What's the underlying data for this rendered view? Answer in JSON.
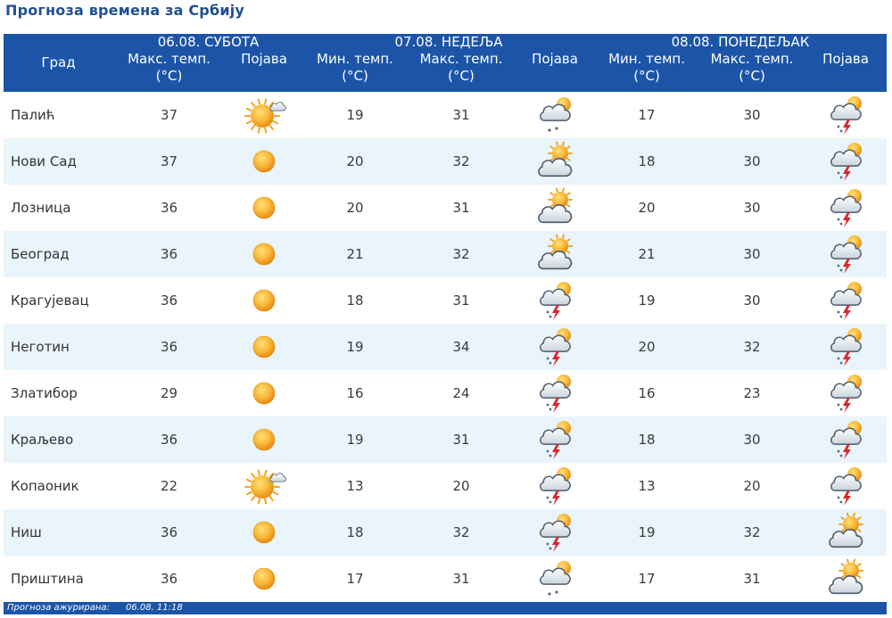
{
  "title": "Прогноза времена за Србију",
  "header": {
    "city_label": "Град",
    "days": [
      {
        "label": "06.08. СУБОТА"
      },
      {
        "label": "07.08. НЕДЕЉА"
      },
      {
        "label": "08.08. ПОНЕДЕЉАК"
      }
    ],
    "max_temp": "Макс. темп.",
    "min_temp": "Мин. темп.",
    "unit": "(°C)",
    "phenomenon": "Појава"
  },
  "rows": [
    {
      "city": "Палић",
      "d1_max": "37",
      "d1_icon": "sun-cloud-icon",
      "d2_min": "19",
      "d2_max": "31",
      "d2_icon": "rain-cloud-icon",
      "d3_min": "17",
      "d3_max": "30",
      "d3_icon": "thunderstorm-icon"
    },
    {
      "city": "Нови Сад",
      "d1_max": "37",
      "d1_icon": "sun-icon",
      "d2_min": "20",
      "d2_max": "32",
      "d2_icon": "partly-cloudy-icon",
      "d3_min": "18",
      "d3_max": "30",
      "d3_icon": "thunderstorm-icon"
    },
    {
      "city": "Лозница",
      "d1_max": "36",
      "d1_icon": "sun-icon",
      "d2_min": "20",
      "d2_max": "31",
      "d2_icon": "partly-cloudy-icon",
      "d3_min": "20",
      "d3_max": "30",
      "d3_icon": "thunderstorm-icon"
    },
    {
      "city": "Београд",
      "d1_max": "36",
      "d1_icon": "sun-icon",
      "d2_min": "21",
      "d2_max": "32",
      "d2_icon": "partly-cloudy-icon",
      "d3_min": "21",
      "d3_max": "30",
      "d3_icon": "thunderstorm-icon"
    },
    {
      "city": "Крагујевац",
      "d1_max": "36",
      "d1_icon": "sun-icon",
      "d2_min": "18",
      "d2_max": "31",
      "d2_icon": "thunderstorm-icon",
      "d3_min": "19",
      "d3_max": "30",
      "d3_icon": "thunderstorm-icon"
    },
    {
      "city": "Неготин",
      "d1_max": "36",
      "d1_icon": "sun-icon",
      "d2_min": "19",
      "d2_max": "34",
      "d2_icon": "thunderstorm-icon",
      "d3_min": "20",
      "d3_max": "32",
      "d3_icon": "thunderstorm-icon"
    },
    {
      "city": "Златибор",
      "d1_max": "29",
      "d1_icon": "sun-icon",
      "d2_min": "16",
      "d2_max": "24",
      "d2_icon": "thunderstorm-icon",
      "d3_min": "16",
      "d3_max": "23",
      "d3_icon": "thunderstorm-icon"
    },
    {
      "city": "Краљево",
      "d1_max": "36",
      "d1_icon": "sun-icon",
      "d2_min": "19",
      "d2_max": "31",
      "d2_icon": "thunderstorm-icon",
      "d3_min": "18",
      "d3_max": "30",
      "d3_icon": "thunderstorm-icon"
    },
    {
      "city": "Копаоник",
      "d1_max": "22",
      "d1_icon": "sun-cloud-icon",
      "d2_min": "13",
      "d2_max": "20",
      "d2_icon": "thunderstorm-icon",
      "d3_min": "13",
      "d3_max": "20",
      "d3_icon": "thunderstorm-icon"
    },
    {
      "city": "Ниш",
      "d1_max": "36",
      "d1_icon": "sun-icon",
      "d2_min": "18",
      "d2_max": "32",
      "d2_icon": "thunderstorm-icon",
      "d3_min": "19",
      "d3_max": "32",
      "d3_icon": "partly-cloudy-icon"
    },
    {
      "city": "Приштина",
      "d1_max": "36",
      "d1_icon": "sun-icon",
      "d2_min": "17",
      "d2_max": "31",
      "d2_icon": "rain-cloud-icon",
      "d3_min": "17",
      "d3_max": "31",
      "d3_icon": "partly-cloudy-icon"
    }
  ],
  "footer": {
    "label": "Прогноза ажурирана:",
    "timestamp": "06.08.  11:18"
  },
  "colors": {
    "header_bg": "#1c55a8",
    "title": "#1f4f94",
    "row_alt": "#e9f4fb",
    "sun": "#f6a21f"
  }
}
